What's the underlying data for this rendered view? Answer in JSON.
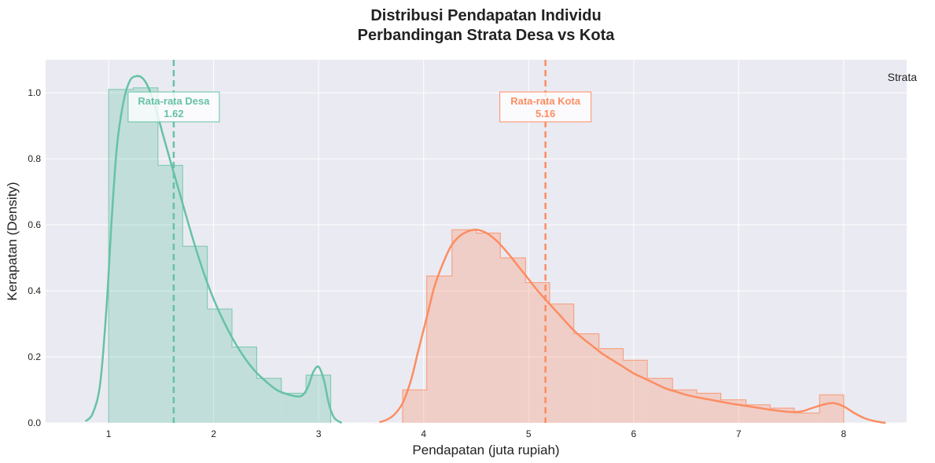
{
  "chart_data": {
    "type": "histogram",
    "title_line1": "Distribusi Pendapatan Individu",
    "title_line2": "Perbandingan Strata Desa vs Kota",
    "xlabel": "Pendapatan (juta rupiah)",
    "ylabel": "Kerapatan (Density)",
    "xlim": [
      0.4,
      8.6
    ],
    "ylim": [
      0,
      1.1
    ],
    "xticks": [
      1,
      2,
      3,
      4,
      5,
      6,
      7,
      8
    ],
    "yticks": [
      0.0,
      0.2,
      0.4,
      0.6,
      0.8,
      1.0
    ],
    "legend_title": "Strata",
    "legend_position": "top-right",
    "grid": true,
    "series": [
      {
        "key": "desa",
        "color": "#66c2a5",
        "bins": [
          {
            "x0": 1.0,
            "x1": 1.235,
            "y": 1.01
          },
          {
            "x0": 1.235,
            "x1": 1.47,
            "y": 1.015
          },
          {
            "x0": 1.47,
            "x1": 1.705,
            "y": 0.78
          },
          {
            "x0": 1.705,
            "x1": 1.94,
            "y": 0.535
          },
          {
            "x0": 1.94,
            "x1": 2.175,
            "y": 0.345
          },
          {
            "x0": 2.175,
            "x1": 2.41,
            "y": 0.23
          },
          {
            "x0": 2.41,
            "x1": 2.645,
            "y": 0.135
          },
          {
            "x0": 2.645,
            "x1": 2.88,
            "y": 0.09
          },
          {
            "x0": 2.88,
            "x1": 3.115,
            "y": 0.145
          }
        ],
        "kde": [
          [
            0.78,
            0.005
          ],
          [
            0.85,
            0.03
          ],
          [
            0.92,
            0.12
          ],
          [
            0.98,
            0.35
          ],
          [
            1.03,
            0.62
          ],
          [
            1.08,
            0.84
          ],
          [
            1.14,
            0.97
          ],
          [
            1.2,
            1.035
          ],
          [
            1.26,
            1.05
          ],
          [
            1.32,
            1.045
          ],
          [
            1.38,
            1.015
          ],
          [
            1.45,
            0.95
          ],
          [
            1.52,
            0.87
          ],
          [
            1.6,
            0.78
          ],
          [
            1.7,
            0.67
          ],
          [
            1.8,
            0.56
          ],
          [
            1.9,
            0.46
          ],
          [
            2.0,
            0.375
          ],
          [
            2.1,
            0.305
          ],
          [
            2.2,
            0.245
          ],
          [
            2.3,
            0.195
          ],
          [
            2.4,
            0.155
          ],
          [
            2.5,
            0.125
          ],
          [
            2.6,
            0.1
          ],
          [
            2.7,
            0.087
          ],
          [
            2.8,
            0.08
          ],
          [
            2.85,
            0.085
          ],
          [
            2.9,
            0.11
          ],
          [
            2.95,
            0.155
          ],
          [
            3.0,
            0.17
          ],
          [
            3.05,
            0.13
          ],
          [
            3.1,
            0.055
          ],
          [
            3.15,
            0.015
          ],
          [
            3.22,
            0.0
          ]
        ],
        "mean": 1.62,
        "mean_label_line1": "Rata-rata Desa",
        "mean_label_line2": "1.62"
      },
      {
        "key": "kota",
        "color": "#fc8d62",
        "bins": [
          {
            "x0": 3.8,
            "x1": 4.03,
            "y": 0.1
          },
          {
            "x0": 4.03,
            "x1": 4.27,
            "y": 0.445
          },
          {
            "x0": 4.27,
            "x1": 4.5,
            "y": 0.585
          },
          {
            "x0": 4.5,
            "x1": 4.73,
            "y": 0.575
          },
          {
            "x0": 4.73,
            "x1": 4.97,
            "y": 0.5
          },
          {
            "x0": 4.97,
            "x1": 5.2,
            "y": 0.425
          },
          {
            "x0": 5.2,
            "x1": 5.43,
            "y": 0.36
          },
          {
            "x0": 5.43,
            "x1": 5.67,
            "y": 0.27
          },
          {
            "x0": 5.67,
            "x1": 5.9,
            "y": 0.225
          },
          {
            "x0": 5.9,
            "x1": 6.13,
            "y": 0.19
          },
          {
            "x0": 6.13,
            "x1": 6.37,
            "y": 0.135
          },
          {
            "x0": 6.37,
            "x1": 6.6,
            "y": 0.1
          },
          {
            "x0": 6.6,
            "x1": 6.83,
            "y": 0.09
          },
          {
            "x0": 6.83,
            "x1": 7.07,
            "y": 0.07
          },
          {
            "x0": 7.07,
            "x1": 7.3,
            "y": 0.055
          },
          {
            "x0": 7.3,
            "x1": 7.53,
            "y": 0.045
          },
          {
            "x0": 7.53,
            "x1": 7.77,
            "y": 0.03
          },
          {
            "x0": 7.77,
            "x1": 8.0,
            "y": 0.085
          }
        ],
        "kde": [
          [
            3.58,
            0.002
          ],
          [
            3.65,
            0.01
          ],
          [
            3.72,
            0.025
          ],
          [
            3.8,
            0.06
          ],
          [
            3.88,
            0.13
          ],
          [
            3.95,
            0.22
          ],
          [
            4.03,
            0.32
          ],
          [
            4.1,
            0.41
          ],
          [
            4.18,
            0.48
          ],
          [
            4.26,
            0.535
          ],
          [
            4.34,
            0.565
          ],
          [
            4.42,
            0.58
          ],
          [
            4.5,
            0.585
          ],
          [
            4.6,
            0.575
          ],
          [
            4.7,
            0.55
          ],
          [
            4.8,
            0.515
          ],
          [
            4.9,
            0.475
          ],
          [
            5.0,
            0.435
          ],
          [
            5.1,
            0.395
          ],
          [
            5.2,
            0.36
          ],
          [
            5.3,
            0.325
          ],
          [
            5.4,
            0.29
          ],
          [
            5.5,
            0.26
          ],
          [
            5.6,
            0.235
          ],
          [
            5.7,
            0.21
          ],
          [
            5.8,
            0.19
          ],
          [
            5.9,
            0.17
          ],
          [
            6.0,
            0.15
          ],
          [
            6.1,
            0.135
          ],
          [
            6.2,
            0.12
          ],
          [
            6.3,
            0.105
          ],
          [
            6.4,
            0.095
          ],
          [
            6.5,
            0.085
          ],
          [
            6.6,
            0.078
          ],
          [
            6.7,
            0.072
          ],
          [
            6.8,
            0.066
          ],
          [
            6.9,
            0.06
          ],
          [
            7.0,
            0.055
          ],
          [
            7.1,
            0.05
          ],
          [
            7.2,
            0.045
          ],
          [
            7.3,
            0.04
          ],
          [
            7.4,
            0.036
          ],
          [
            7.5,
            0.033
          ],
          [
            7.6,
            0.035
          ],
          [
            7.7,
            0.045
          ],
          [
            7.8,
            0.055
          ],
          [
            7.9,
            0.06
          ],
          [
            8.0,
            0.05
          ],
          [
            8.1,
            0.03
          ],
          [
            8.2,
            0.014
          ],
          [
            8.3,
            0.005
          ],
          [
            8.4,
            0.0
          ]
        ],
        "mean": 5.16,
        "mean_label_line1": "Rata-rata Kota",
        "mean_label_line2": "5.16"
      }
    ]
  }
}
